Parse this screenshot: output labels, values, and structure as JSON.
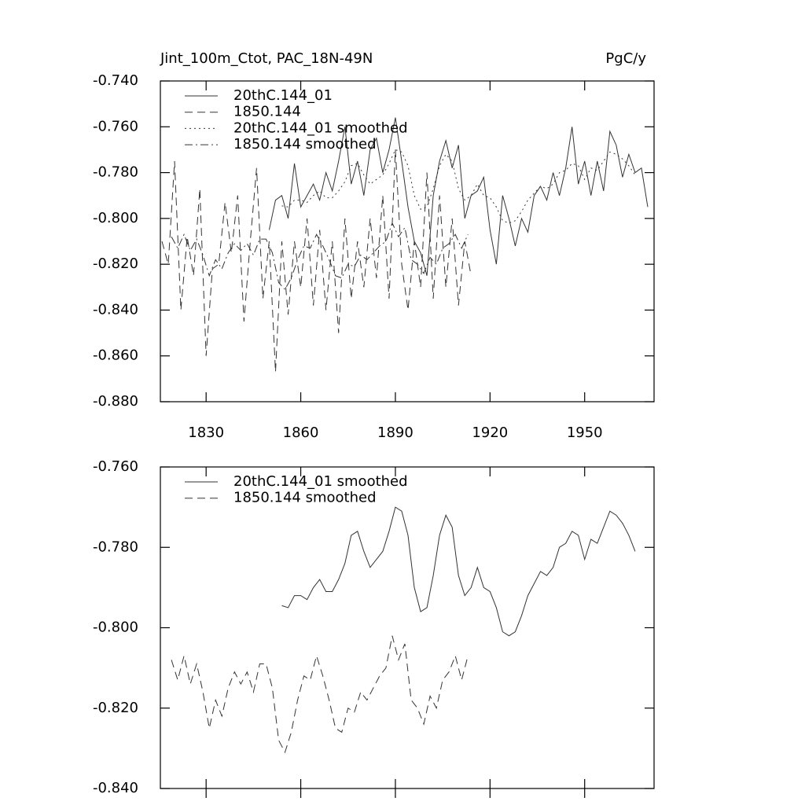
{
  "chart_data": [
    {
      "type": "line",
      "title": "Jint_100m_Ctot, PAC_18N-49N",
      "units": "PgC/y",
      "xlim": [
        1815.5,
        1972
      ],
      "xticks": [
        1830,
        1860,
        1890,
        1920,
        1950
      ],
      "xtick_labels": true,
      "ylim": [
        -0.88,
        -0.74
      ],
      "yticks": [
        {
          "value": -0.88,
          "label": "-0.880"
        },
        {
          "value": -0.86,
          "label": "-0.860"
        },
        {
          "value": -0.84,
          "label": "-0.840"
        },
        {
          "value": -0.82,
          "label": "-0.820"
        },
        {
          "value": -0.8,
          "label": "-0.800"
        },
        {
          "value": -0.78,
          "label": "-0.780"
        },
        {
          "value": -0.76,
          "label": "-0.760"
        },
        {
          "value": -0.74,
          "label": "-0.740"
        }
      ],
      "series": [
        {
          "name": "20thC.144_01",
          "color": "#333333",
          "dash": "solid",
          "x": [
            1850,
            1852,
            1854,
            1856,
            1858,
            1860,
            1862,
            1864,
            1866,
            1868,
            1870,
            1872,
            1874,
            1876,
            1878,
            1880,
            1882,
            1884,
            1886,
            1888,
            1890,
            1892,
            1894,
            1896,
            1898,
            1900,
            1902,
            1904,
            1906,
            1908,
            1910,
            1912,
            1914,
            1916,
            1918,
            1920,
            1922,
            1924,
            1926,
            1928,
            1930,
            1932,
            1934,
            1936,
            1938,
            1940,
            1942,
            1944,
            1946,
            1948,
            1950,
            1952,
            1954,
            1956,
            1958,
            1960,
            1962,
            1964,
            1966,
            1968,
            1970
          ],
          "values": [
            -0.805,
            -0.792,
            -0.79,
            -0.8,
            -0.776,
            -0.795,
            -0.79,
            -0.785,
            -0.792,
            -0.78,
            -0.788,
            -0.775,
            -0.76,
            -0.785,
            -0.775,
            -0.79,
            -0.77,
            -0.765,
            -0.78,
            -0.77,
            -0.756,
            -0.775,
            -0.795,
            -0.81,
            -0.815,
            -0.825,
            -0.79,
            -0.775,
            -0.766,
            -0.778,
            -0.768,
            -0.8,
            -0.79,
            -0.788,
            -0.782,
            -0.805,
            -0.82,
            -0.79,
            -0.8,
            -0.812,
            -0.8,
            -0.806,
            -0.79,
            -0.786,
            -0.792,
            -0.78,
            -0.79,
            -0.778,
            -0.76,
            -0.785,
            -0.775,
            -0.79,
            -0.775,
            -0.788,
            -0.762,
            -0.768,
            -0.782,
            -0.772,
            -0.78,
            -0.778,
            -0.795
          ]
        },
        {
          "name": "1850.144",
          "color": "#333333",
          "dash": "dashed",
          "x": [
            1816,
            1818,
            1820,
            1822,
            1824,
            1826,
            1828,
            1830,
            1832,
            1834,
            1836,
            1838,
            1840,
            1842,
            1844,
            1846,
            1848,
            1850,
            1852,
            1854,
            1856,
            1858,
            1860,
            1862,
            1864,
            1866,
            1868,
            1870,
            1872,
            1874,
            1876,
            1878,
            1880,
            1882,
            1884,
            1886,
            1888,
            1890,
            1892,
            1894,
            1896,
            1898,
            1900,
            1902,
            1904,
            1906,
            1908,
            1910,
            1912,
            1914
          ],
          "values": [
            -0.81,
            -0.82,
            -0.775,
            -0.84,
            -0.808,
            -0.825,
            -0.787,
            -0.86,
            -0.822,
            -0.82,
            -0.793,
            -0.815,
            -0.79,
            -0.845,
            -0.81,
            -0.778,
            -0.835,
            -0.81,
            -0.867,
            -0.81,
            -0.842,
            -0.81,
            -0.83,
            -0.8,
            -0.838,
            -0.805,
            -0.84,
            -0.81,
            -0.85,
            -0.8,
            -0.835,
            -0.81,
            -0.83,
            -0.8,
            -0.826,
            -0.79,
            -0.835,
            -0.77,
            -0.82,
            -0.84,
            -0.81,
            -0.83,
            -0.78,
            -0.835,
            -0.79,
            -0.83,
            -0.8,
            -0.838,
            -0.81,
            -0.825
          ]
        },
        {
          "name": "20thC.144_01 smoothed",
          "color": "#333333",
          "dash": "dotted",
          "x": [
            1854,
            1856,
            1858,
            1860,
            1862,
            1864,
            1866,
            1868,
            1870,
            1872,
            1874,
            1876,
            1878,
            1880,
            1882,
            1884,
            1886,
            1888,
            1890,
            1892,
            1894,
            1896,
            1898,
            1900,
            1902,
            1904,
            1906,
            1908,
            1910,
            1912,
            1914,
            1916,
            1918,
            1920,
            1922,
            1924,
            1926,
            1928,
            1930,
            1932,
            1934,
            1936,
            1938,
            1940,
            1942,
            1944,
            1946,
            1948,
            1950,
            1952,
            1954,
            1956,
            1958,
            1960,
            1962,
            1964,
            1966
          ],
          "values": [
            -0.7945,
            -0.795,
            -0.792,
            -0.792,
            -0.793,
            -0.79,
            -0.788,
            -0.791,
            -0.791,
            -0.788,
            -0.784,
            -0.777,
            -0.776,
            -0.781,
            -0.785,
            -0.783,
            -0.781,
            -0.776,
            -0.77,
            -0.771,
            -0.777,
            -0.79,
            -0.796,
            -0.795,
            -0.787,
            -0.777,
            -0.772,
            -0.775,
            -0.787,
            -0.792,
            -0.79,
            -0.785,
            -0.79,
            -0.791,
            -0.795,
            -0.801,
            -0.802,
            -0.801,
            -0.797,
            -0.792,
            -0.789,
            -0.786,
            -0.787,
            -0.785,
            -0.78,
            -0.779,
            -0.776,
            -0.777,
            -0.783,
            -0.778,
            -0.779,
            -0.775,
            -0.771,
            -0.772,
            -0.774,
            -0.777,
            -0.781
          ]
        },
        {
          "name": "1850.144 smoothed",
          "color": "#333333",
          "dash": "dashdot",
          "x": [
            1819,
            1821,
            1823,
            1825,
            1827,
            1829,
            1831,
            1833,
            1835,
            1837,
            1839,
            1841,
            1843,
            1845,
            1847,
            1849,
            1851,
            1853,
            1855,
            1857,
            1859,
            1861,
            1863,
            1865,
            1867,
            1869,
            1871,
            1873,
            1875,
            1877,
            1879,
            1881,
            1883,
            1885,
            1887,
            1889,
            1891,
            1893,
            1895,
            1897,
            1899,
            1901,
            1903,
            1905,
            1907,
            1909,
            1911,
            1913
          ],
          "values": [
            -0.808,
            -0.813,
            -0.807,
            -0.814,
            -0.809,
            -0.816,
            -0.825,
            -0.818,
            -0.822,
            -0.815,
            -0.811,
            -0.814,
            -0.811,
            -0.816,
            -0.809,
            -0.809,
            -0.815,
            -0.828,
            -0.831,
            -0.826,
            -0.818,
            -0.812,
            -0.813,
            -0.807,
            -0.812,
            -0.818,
            -0.825,
            -0.826,
            -0.82,
            -0.821,
            -0.816,
            -0.818,
            -0.815,
            -0.812,
            -0.81,
            -0.802,
            -0.808,
            -0.804,
            -0.818,
            -0.82,
            -0.824,
            -0.817,
            -0.82,
            -0.813,
            -0.811,
            -0.807,
            -0.813,
            -0.807
          ]
        }
      ]
    },
    {
      "type": "line",
      "xlim": [
        1815.5,
        1972
      ],
      "xticks": [
        1830,
        1860,
        1890,
        1920,
        1950
      ],
      "xtick_labels": false,
      "ylim": [
        -0.84,
        -0.76
      ],
      "yticks": [
        {
          "value": -0.84,
          "label": "-0.840"
        },
        {
          "value": -0.82,
          "label": "-0.820"
        },
        {
          "value": -0.8,
          "label": "-0.800"
        },
        {
          "value": -0.78,
          "label": "-0.780"
        },
        {
          "value": -0.76,
          "label": "-0.760"
        }
      ],
      "series": [
        {
          "name": "20thC.144_01 smoothed",
          "color": "#333333",
          "dash": "solid",
          "x": [
            1854,
            1856,
            1858,
            1860,
            1862,
            1864,
            1866,
            1868,
            1870,
            1872,
            1874,
            1876,
            1878,
            1880,
            1882,
            1884,
            1886,
            1888,
            1890,
            1892,
            1894,
            1896,
            1898,
            1900,
            1902,
            1904,
            1906,
            1908,
            1910,
            1912,
            1914,
            1916,
            1918,
            1920,
            1922,
            1924,
            1926,
            1928,
            1930,
            1932,
            1934,
            1936,
            1938,
            1940,
            1942,
            1944,
            1946,
            1948,
            1950,
            1952,
            1954,
            1956,
            1958,
            1960,
            1962,
            1964,
            1966
          ],
          "values": [
            -0.7945,
            -0.795,
            -0.792,
            -0.792,
            -0.793,
            -0.79,
            -0.788,
            -0.791,
            -0.791,
            -0.788,
            -0.784,
            -0.777,
            -0.776,
            -0.781,
            -0.785,
            -0.783,
            -0.781,
            -0.776,
            -0.77,
            -0.771,
            -0.777,
            -0.79,
            -0.796,
            -0.795,
            -0.787,
            -0.777,
            -0.772,
            -0.775,
            -0.787,
            -0.792,
            -0.79,
            -0.785,
            -0.79,
            -0.791,
            -0.795,
            -0.801,
            -0.802,
            -0.801,
            -0.797,
            -0.792,
            -0.789,
            -0.786,
            -0.787,
            -0.785,
            -0.78,
            -0.779,
            -0.776,
            -0.777,
            -0.783,
            -0.778,
            -0.779,
            -0.775,
            -0.771,
            -0.772,
            -0.774,
            -0.777,
            -0.781
          ]
        },
        {
          "name": "1850.144 smoothed",
          "color": "#333333",
          "dash": "dashed",
          "x": [
            1819,
            1821,
            1823,
            1825,
            1827,
            1829,
            1831,
            1833,
            1835,
            1837,
            1839,
            1841,
            1843,
            1845,
            1847,
            1849,
            1851,
            1853,
            1855,
            1857,
            1859,
            1861,
            1863,
            1865,
            1867,
            1869,
            1871,
            1873,
            1875,
            1877,
            1879,
            1881,
            1883,
            1885,
            1887,
            1889,
            1891,
            1893,
            1895,
            1897,
            1899,
            1901,
            1903,
            1905,
            1907,
            1909,
            1911,
            1913
          ],
          "values": [
            -0.808,
            -0.813,
            -0.807,
            -0.814,
            -0.809,
            -0.816,
            -0.825,
            -0.818,
            -0.822,
            -0.815,
            -0.811,
            -0.814,
            -0.811,
            -0.816,
            -0.809,
            -0.809,
            -0.815,
            -0.828,
            -0.831,
            -0.826,
            -0.818,
            -0.812,
            -0.813,
            -0.807,
            -0.812,
            -0.818,
            -0.825,
            -0.826,
            -0.82,
            -0.821,
            -0.816,
            -0.818,
            -0.815,
            -0.812,
            -0.81,
            -0.802,
            -0.808,
            -0.804,
            -0.818,
            -0.82,
            -0.824,
            -0.817,
            -0.82,
            -0.813,
            -0.811,
            -0.807,
            -0.813,
            -0.807
          ]
        }
      ]
    }
  ]
}
